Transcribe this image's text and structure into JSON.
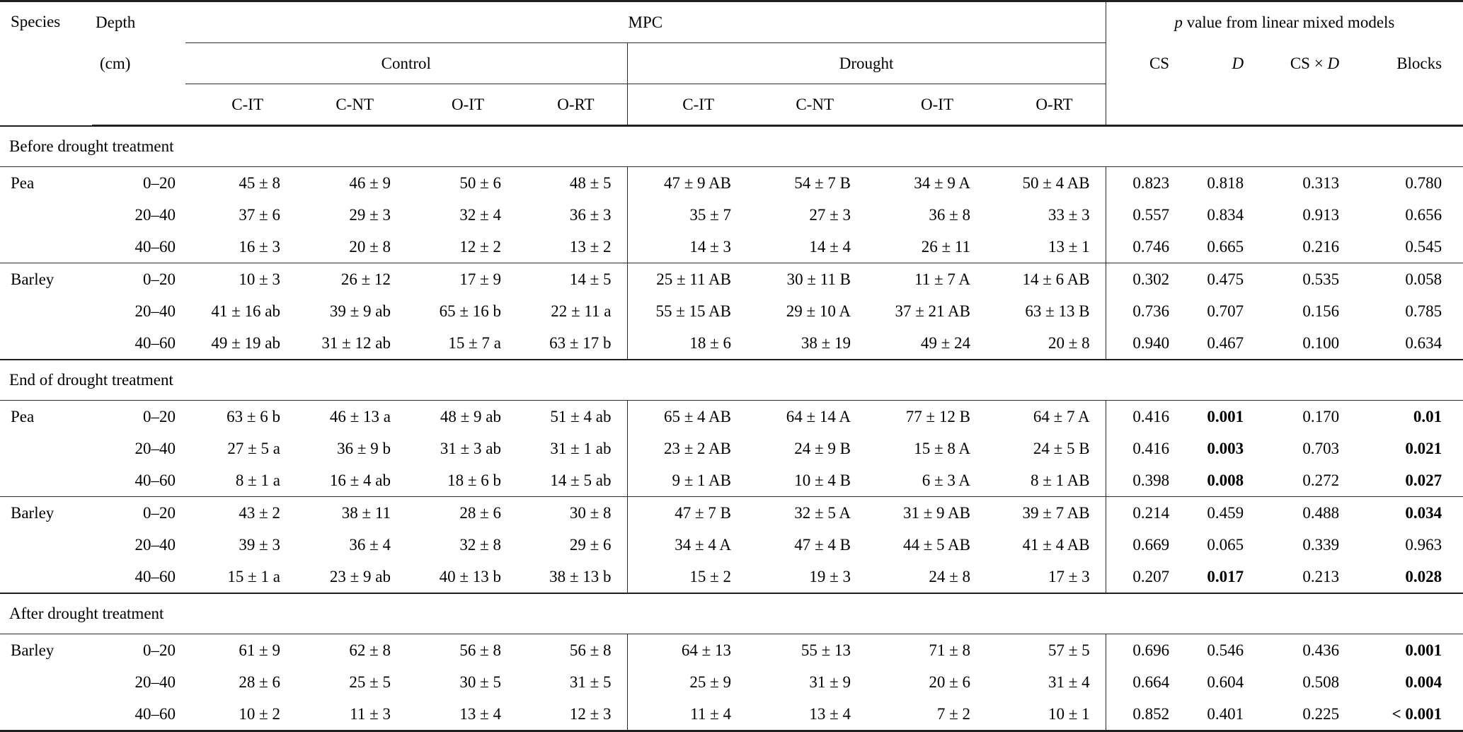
{
  "header": {
    "species": "Species",
    "depth": "Depth",
    "depth_unit": "(cm)",
    "mpc": "MPC",
    "p_title_italic": "p",
    "p_title_rest": " value from linear mixed models",
    "control": "Control",
    "drought": "Drought",
    "subcols": [
      "C-IT",
      "C-NT",
      "O-IT",
      "O-RT"
    ],
    "pcols": {
      "cs": "CS",
      "d": "D",
      "csxd_left": "CS",
      "csxd_times": "×",
      "csxd_right": "D",
      "blocks": "Blocks"
    }
  },
  "sections": [
    {
      "title": "Before drought treatment",
      "blocks": [
        {
          "species": "Pea",
          "rows": [
            {
              "depth": "0–20",
              "control": [
                "45 ± 8",
                "46 ± 9",
                "50 ± 6",
                "48 ± 5"
              ],
              "drought": [
                "47 ± 9 AB",
                "54 ± 7 B",
                "34 ± 9 A",
                "50 ± 4 AB"
              ],
              "p": [
                "0.823",
                "0.818",
                "0.313",
                "0.780"
              ],
              "p_bold": [
                0,
                0,
                0,
                0
              ]
            },
            {
              "depth": "20–40",
              "control": [
                "37 ± 6",
                "29 ± 3",
                "32 ± 4",
                "36 ± 3"
              ],
              "drought": [
                "35 ± 7",
                "27 ± 3",
                "36 ± 8",
                "33 ± 3"
              ],
              "p": [
                "0.557",
                "0.834",
                "0.913",
                "0.656"
              ],
              "p_bold": [
                0,
                0,
                0,
                0
              ]
            },
            {
              "depth": "40–60",
              "control": [
                "16 ± 3",
                "20 ± 8",
                "12 ± 2",
                "13 ± 2"
              ],
              "drought": [
                "14 ± 3",
                "14 ± 4",
                "26 ± 11",
                "13 ± 1"
              ],
              "p": [
                "0.746",
                "0.665",
                "0.216",
                "0.545"
              ],
              "p_bold": [
                0,
                0,
                0,
                0
              ]
            }
          ]
        },
        {
          "species": "Barley",
          "rows": [
            {
              "depth": "0–20",
              "control": [
                "10 ± 3",
                "26 ± 12",
                "17 ± 9",
                "14 ± 5"
              ],
              "drought": [
                "25 ± 11 AB",
                "30 ± 11 B",
                "11 ± 7 A",
                "14 ± 6 AB"
              ],
              "p": [
                "0.302",
                "0.475",
                "0.535",
                "0.058"
              ],
              "p_bold": [
                0,
                0,
                0,
                0
              ]
            },
            {
              "depth": "20–40",
              "control": [
                "41 ± 16 ab",
                "39 ± 9 ab",
                "65 ± 16 b",
                "22 ± 11 a"
              ],
              "drought": [
                "55 ± 15 AB",
                "29 ± 10 A",
                "37 ± 21 AB",
                "63 ± 13 B"
              ],
              "p": [
                "0.736",
                "0.707",
                "0.156",
                "0.785"
              ],
              "p_bold": [
                0,
                0,
                0,
                0
              ]
            },
            {
              "depth": "40–60",
              "control": [
                "49 ± 19 ab",
                "31 ± 12 ab",
                "15 ± 7 a",
                "63 ± 17 b"
              ],
              "drought": [
                "18 ± 6",
                "38 ± 19",
                "49 ± 24",
                "20 ± 8"
              ],
              "p": [
                "0.940",
                "0.467",
                "0.100",
                "0.634"
              ],
              "p_bold": [
                0,
                0,
                0,
                0
              ]
            }
          ]
        }
      ]
    },
    {
      "title": "End of drought treatment",
      "blocks": [
        {
          "species": "Pea",
          "rows": [
            {
              "depth": "0–20",
              "control": [
                "63 ± 6 b",
                "46 ± 13 a",
                "48 ± 9 ab",
                "51 ± 4 ab"
              ],
              "drought": [
                "65 ± 4 AB",
                "64 ± 14 A",
                "77 ± 12 B",
                "64 ± 7 A"
              ],
              "p": [
                "0.416",
                "0.001",
                "0.170",
                "0.01"
              ],
              "p_bold": [
                0,
                1,
                0,
                1
              ]
            },
            {
              "depth": "20–40",
              "control": [
                "27 ± 5 a",
                "36 ± 9 b",
                "31 ± 3 ab",
                "31 ± 1 ab"
              ],
              "drought": [
                "23 ± 2 AB",
                "24 ± 9 B",
                "15 ± 8 A",
                "24 ± 5 B"
              ],
              "p": [
                "0.416",
                "0.003",
                "0.703",
                "0.021"
              ],
              "p_bold": [
                0,
                1,
                0,
                1
              ]
            },
            {
              "depth": "40–60",
              "control": [
                "8 ± 1 a",
                "16 ± 4 ab",
                "18 ± 6 b",
                "14 ± 5 ab"
              ],
              "drought": [
                "9 ± 1 AB",
                "10 ± 4 B",
                "6 ± 3 A",
                "8 ± 1 AB"
              ],
              "p": [
                "0.398",
                "0.008",
                "0.272",
                "0.027"
              ],
              "p_bold": [
                0,
                1,
                0,
                1
              ]
            }
          ]
        },
        {
          "species": "Barley",
          "rows": [
            {
              "depth": "0–20",
              "control": [
                "43 ± 2",
                "38 ± 11",
                "28 ± 6",
                "30 ± 8"
              ],
              "drought": [
                "47 ± 7 B",
                "32 ± 5 A",
                "31 ± 9 AB",
                "39 ± 7 AB"
              ],
              "p": [
                "0.214",
                "0.459",
                "0.488",
                "0.034"
              ],
              "p_bold": [
                0,
                0,
                0,
                1
              ]
            },
            {
              "depth": "20–40",
              "control": [
                "39 ± 3",
                "36 ± 4",
                "32 ± 8",
                "29 ± 6"
              ],
              "drought": [
                "34 ± 4 A",
                "47 ± 4 B",
                "44 ± 5 AB",
                "41 ± 4 AB"
              ],
              "p": [
                "0.669",
                "0.065",
                "0.339",
                "0.963"
              ],
              "p_bold": [
                0,
                0,
                0,
                0
              ]
            },
            {
              "depth": "40–60",
              "control": [
                "15 ± 1 a",
                "23 ± 9 ab",
                "40 ± 13 b",
                "38 ± 13 b"
              ],
              "drought": [
                "15 ± 2",
                "19 ± 3",
                "24 ± 8",
                "17 ± 3"
              ],
              "p": [
                "0.207",
                "0.017",
                "0.213",
                "0.028"
              ],
              "p_bold": [
                0,
                1,
                0,
                1
              ]
            }
          ]
        }
      ]
    },
    {
      "title": "After drought treatment",
      "blocks": [
        {
          "species": "Barley",
          "rows": [
            {
              "depth": "0–20",
              "control": [
                "61 ± 9",
                "62 ± 8",
                "56 ± 8",
                "56 ± 8"
              ],
              "drought": [
                "64 ± 13",
                "55 ± 13",
                "71 ± 8",
                "57 ± 5"
              ],
              "p": [
                "0.696",
                "0.546",
                "0.436",
                "0.001"
              ],
              "p_bold": [
                0,
                0,
                0,
                1
              ]
            },
            {
              "depth": "20–40",
              "control": [
                "28 ± 6",
                "25 ± 5",
                "30 ± 5",
                "31 ± 5"
              ],
              "drought": [
                "25 ± 9",
                "31 ± 9",
                "20 ± 6",
                "31 ± 4"
              ],
              "p": [
                "0.664",
                "0.604",
                "0.508",
                "0.004"
              ],
              "p_bold": [
                0,
                0,
                0,
                1
              ]
            },
            {
              "depth": "40–60",
              "control": [
                "10 ± 2",
                "11 ± 3",
                "13 ± 4",
                "12 ± 3"
              ],
              "drought": [
                "11 ± 4",
                "13 ± 4",
                "7 ± 2",
                "10 ± 1"
              ],
              "p": [
                "0.852",
                "0.401",
                "0.225",
                "< 0.001"
              ],
              "p_bold": [
                0,
                0,
                0,
                1
              ]
            }
          ]
        }
      ]
    }
  ]
}
